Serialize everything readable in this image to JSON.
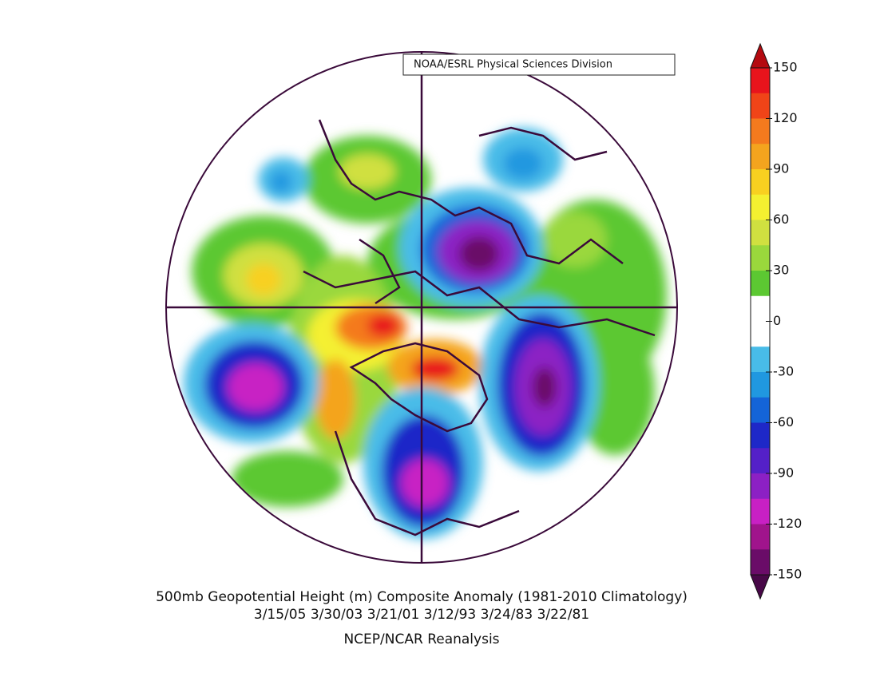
{
  "map": {
    "credit": "NOAA/ESRL Physical Sciences Division",
    "title": "500mb Geopotential Height (m) Composite Anomaly (1981-2010 Climatology)",
    "dates": "3/15/05 3/30/03 3/21/01 3/12/93 3/24/83 3/22/81",
    "source": "NCEP/NCAR Reanalysis",
    "colorbar": {
      "lim": [
        -150,
        150
      ],
      "ticks": [
        150,
        120,
        90,
        60,
        30,
        0,
        -30,
        -60,
        -90,
        -120,
        -150
      ],
      "colors": [
        "#e8141c",
        "#f04418",
        "#f47a1e",
        "#f4a41e",
        "#f8d020",
        "#f4f030",
        "#d0e040",
        "#9ad83c",
        "#5cc832",
        "#ffffff",
        "#ffffff",
        "#48bce8",
        "#2098e0",
        "#1464d8",
        "#1e28c8",
        "#5420c8",
        "#8c20c4",
        "#c820c4",
        "#a0148c",
        "#6a0c68"
      ],
      "over_color": "#b40a10",
      "under_color": "#480848"
    }
  }
}
